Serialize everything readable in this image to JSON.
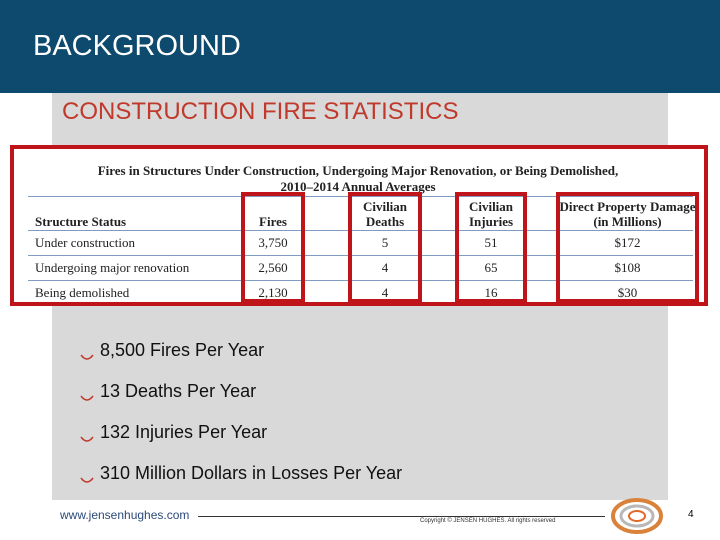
{
  "header": {
    "title": "BACKGROUND"
  },
  "subtitle": "CONSTRUCTION FIRE STATISTICS",
  "table": {
    "caption": [
      "Fires in Structures Under Construction, Undergoing Major Renovation, or Being Demolished,",
      "2010–2014 Annual Averages"
    ],
    "columns": [
      "Structure Status",
      "Fires",
      "Civilian Deaths",
      "Civilian Injuries",
      "Direct Property Damage (in Millions)"
    ],
    "rows": [
      [
        "Under construction",
        "3,750",
        "5",
        "51",
        "$172"
      ],
      [
        "Undergoing major renovation",
        "2,560",
        "4",
        "65",
        "$108"
      ],
      [
        "Being demolished",
        "2,130",
        "4",
        "16",
        "$30"
      ]
    ]
  },
  "bullets": [
    "8,500 Fires Per Year",
    "13 Deaths Per Year",
    "132 Injuries Per Year",
    "310 Million Dollars in Losses Per Year"
  ],
  "footer": {
    "url": "www.jensenhughes.com",
    "copyright": "Copyright © JENSEN HUGHES. All rights reserved",
    "page": "4"
  }
}
